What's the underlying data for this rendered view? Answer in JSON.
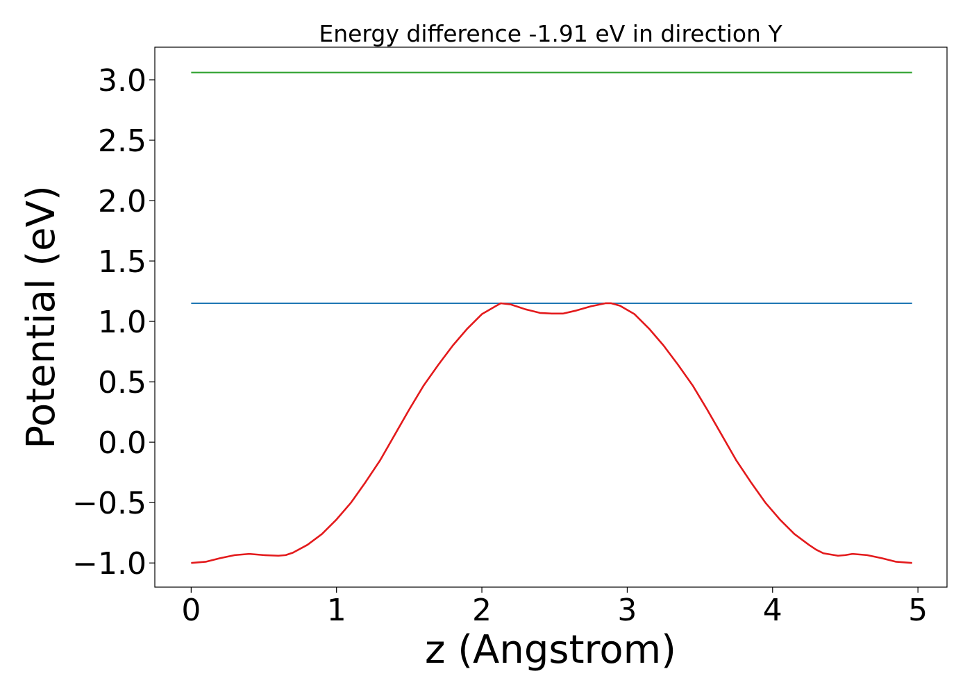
{
  "chart_data": {
    "type": "line",
    "title": "Energy difference -1.91 eV in direction Y",
    "xlabel": "z (Angstrom)",
    "ylabel": "Potential (eV)",
    "xlim": [
      -0.25,
      5.2
    ],
    "ylim": [
      -1.2,
      3.27
    ],
    "x_ticks": [
      0,
      1,
      2,
      3,
      4,
      5
    ],
    "x_tick_labels": [
      "0",
      "1",
      "2",
      "3",
      "4",
      "5"
    ],
    "y_ticks": [
      -1.0,
      -0.5,
      0.0,
      0.5,
      1.0,
      1.5,
      2.0,
      2.5,
      3.0
    ],
    "y_tick_labels": [
      "−1.0",
      "−0.5",
      "0.0",
      "0.5",
      "1.0",
      "1.5",
      "2.0",
      "2.5",
      "3.0"
    ],
    "grid": false,
    "legend": "none",
    "series": [
      {
        "color": "#2ca02c",
        "x": [
          0,
          4.96
        ],
        "y": [
          3.06,
          3.06
        ]
      },
      {
        "color": "#1f77b4",
        "x": [
          0,
          4.96
        ],
        "y": [
          1.15,
          1.15
        ]
      },
      {
        "color": "#e31a1c",
        "x": [
          0.0,
          0.1,
          0.2,
          0.3,
          0.4,
          0.45,
          0.5,
          0.6,
          0.65,
          0.7,
          0.8,
          0.9,
          1.0,
          1.1,
          1.2,
          1.3,
          1.4,
          1.5,
          1.6,
          1.7,
          1.8,
          1.9,
          2.0,
          2.1,
          2.13,
          2.2,
          2.3,
          2.4,
          2.48,
          2.56,
          2.65,
          2.75,
          2.85,
          2.89,
          2.95,
          3.05,
          3.15,
          3.25,
          3.35,
          3.45,
          3.55,
          3.65,
          3.75,
          3.85,
          3.95,
          4.05,
          4.15,
          4.25,
          4.3,
          4.35,
          4.45,
          4.5,
          4.55,
          4.65,
          4.75,
          4.85,
          4.96
        ],
        "y": [
          -1.0,
          -0.99,
          -0.96,
          -0.935,
          -0.925,
          -0.93,
          -0.935,
          -0.94,
          -0.935,
          -0.915,
          -0.85,
          -0.76,
          -0.64,
          -0.5,
          -0.33,
          -0.15,
          0.06,
          0.27,
          0.47,
          0.64,
          0.8,
          0.94,
          1.06,
          1.13,
          1.15,
          1.14,
          1.1,
          1.07,
          1.065,
          1.065,
          1.09,
          1.125,
          1.15,
          1.15,
          1.13,
          1.06,
          0.94,
          0.8,
          0.64,
          0.47,
          0.27,
          0.06,
          -0.15,
          -0.33,
          -0.5,
          -0.64,
          -0.76,
          -0.85,
          -0.89,
          -0.92,
          -0.94,
          -0.935,
          -0.925,
          -0.935,
          -0.96,
          -0.99,
          -1.0
        ]
      }
    ]
  }
}
